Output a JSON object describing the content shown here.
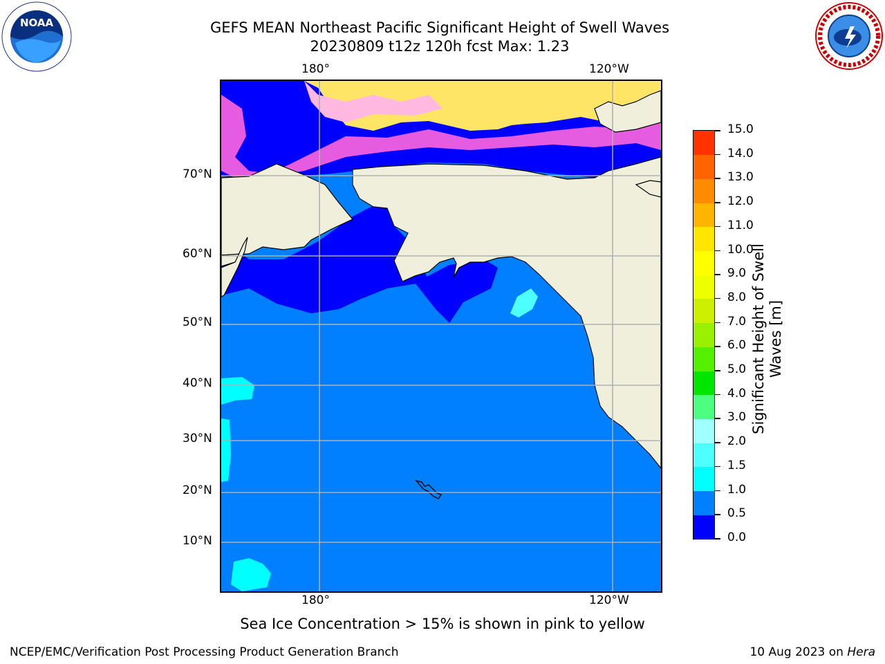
{
  "title_line1": "GEFS MEAN Northeast Pacific Significant Height of Swell Waves",
  "title_line2": "20230809 t12z 120h fcst   Max: 1.23",
  "lon_ticks": [
    "180°",
    "120°W"
  ],
  "lat_ticks": [
    "70°N",
    "60°N",
    "50°N",
    "40°N",
    "30°N",
    "20°N",
    "10°N"
  ],
  "colorbar": {
    "label": "Significant Height of Swell\nWaves [m]",
    "tick_labels": [
      "0.0",
      "0.5",
      "1.0",
      "1.5",
      "2.0",
      "3.0",
      "4.0",
      "5.0",
      "6.0",
      "7.0",
      "8.0",
      "9.0",
      "10.0",
      "11.0",
      "12.0",
      "13.0",
      "14.0",
      "15.0"
    ],
    "colors": [
      "#0000ff",
      "#0080ff",
      "#00ffff",
      "#4dffff",
      "#a0ffff",
      "#4dff80",
      "#00e600",
      "#55f000",
      "#99f000",
      "#ccf000",
      "#eeff00",
      "#ffff00",
      "#ffe600",
      "#ffb400",
      "#ff8c00",
      "#ff6400",
      "#ff3200",
      "#ff0000"
    ]
  },
  "map_colors": {
    "ocean_mid": "#0080ff",
    "ocean_low": "#0000ff",
    "ocean_high": "#00ffff",
    "land": "#efefdc",
    "sea_ice_low": "#ff66dd",
    "sea_ice_high": "#ffe566",
    "grid": "#b0b0b0"
  },
  "footnote": "Sea Ice Concentration > 15% is shown in pink to yellow",
  "credit_left": "NCEP/EMC/Verification Post Processing Product Generation Branch",
  "credit_right_date": "10 Aug 2023 on ",
  "credit_right_machine": "Hera",
  "logos": {
    "noaa": "NOAA",
    "nws": "NATIONAL WEATHER SERVICE"
  }
}
